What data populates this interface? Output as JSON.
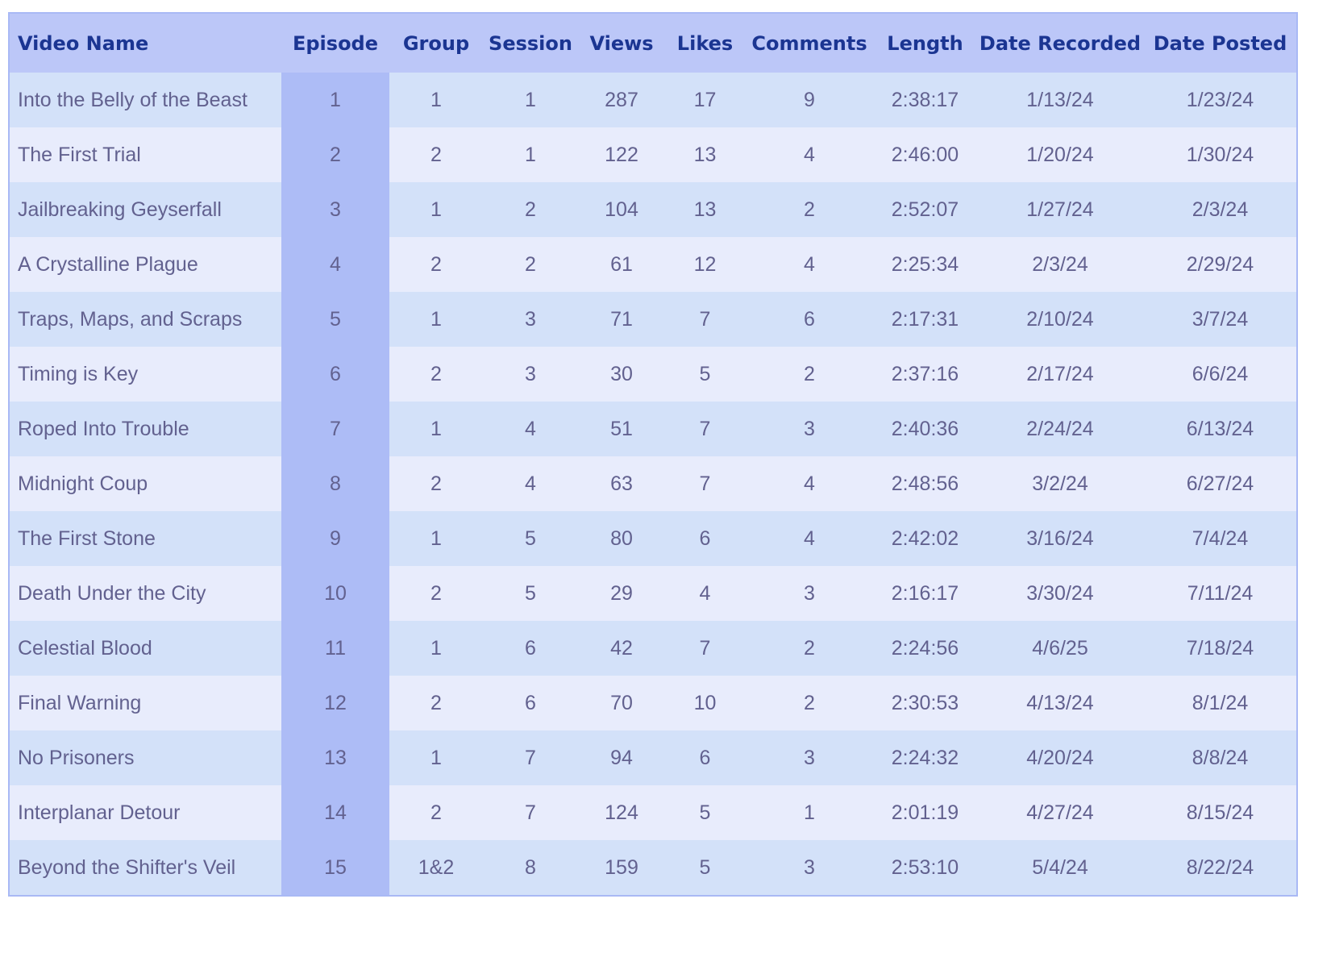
{
  "colors": {
    "header_bg": "#bcc7f8",
    "header_text": "#1b3592",
    "row_odd": "#d3e1f9",
    "row_even": "#e8ecfc",
    "highlight_column": "#adbcf6",
    "body_text": "#62618f",
    "border": "#a9b9f5"
  },
  "table": {
    "headers": [
      "Video Name",
      "Episode",
      "Group",
      "Session",
      "Views",
      "Likes",
      "Comments",
      "Length",
      "Date Recorded",
      "Date Posted"
    ],
    "rows": [
      [
        "Into the Belly of the Beast",
        "1",
        "1",
        "1",
        "287",
        "17",
        "9",
        "2:38:17",
        "1/13/24",
        "1/23/24"
      ],
      [
        "The First Trial",
        "2",
        "2",
        "1",
        "122",
        "13",
        "4",
        "2:46:00",
        "1/20/24",
        "1/30/24"
      ],
      [
        "Jailbreaking Geyserfall",
        "3",
        "1",
        "2",
        "104",
        "13",
        "2",
        "2:52:07",
        "1/27/24",
        "2/3/24"
      ],
      [
        "A Crystalline Plague",
        "4",
        "2",
        "2",
        "61",
        "12",
        "4",
        "2:25:34",
        "2/3/24",
        "2/29/24"
      ],
      [
        "Traps, Maps, and Scraps",
        "5",
        "1",
        "3",
        "71",
        "7",
        "6",
        "2:17:31",
        "2/10/24",
        "3/7/24"
      ],
      [
        "Timing is Key",
        "6",
        "2",
        "3",
        "30",
        "5",
        "2",
        "2:37:16",
        "2/17/24",
        "6/6/24"
      ],
      [
        "Roped Into Trouble",
        "7",
        "1",
        "4",
        "51",
        "7",
        "3",
        "2:40:36",
        "2/24/24",
        "6/13/24"
      ],
      [
        "Midnight Coup",
        "8",
        "2",
        "4",
        "63",
        "7",
        "4",
        "2:48:56",
        "3/2/24",
        "6/27/24"
      ],
      [
        "The First Stone",
        "9",
        "1",
        "5",
        "80",
        "6",
        "4",
        "2:42:02",
        "3/16/24",
        "7/4/24"
      ],
      [
        "Death Under the City",
        "10",
        "2",
        "5",
        "29",
        "4",
        "3",
        "2:16:17",
        "3/30/24",
        "7/11/24"
      ],
      [
        "Celestial Blood",
        "11",
        "1",
        "6",
        "42",
        "7",
        "2",
        "2:24:56",
        "4/6/25",
        "7/18/24"
      ],
      [
        "Final Warning",
        "12",
        "2",
        "6",
        "70",
        "10",
        "2",
        "2:30:53",
        "4/13/24",
        "8/1/24"
      ],
      [
        "No Prisoners",
        "13",
        "1",
        "7",
        "94",
        "6",
        "3",
        "2:24:32",
        "4/20/24",
        "8/8/24"
      ],
      [
        "Interplanar Detour",
        "14",
        "2",
        "7",
        "124",
        "5",
        "1",
        "2:01:19",
        "4/27/24",
        "8/15/24"
      ],
      [
        "Beyond the Shifter's Veil",
        "15",
        "1&2",
        "8",
        "159",
        "5",
        "3",
        "2:53:10",
        "5/4/24",
        "8/22/24"
      ]
    ]
  }
}
